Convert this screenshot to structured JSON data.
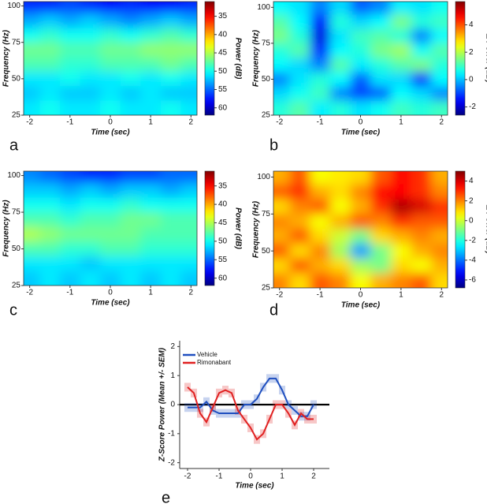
{
  "chart_data": [
    {
      "type": "heatmap",
      "panel_label": "a",
      "x_label": "Time (sec)",
      "y_label": "Frequency (Hz)",
      "colorbar_label": "Power (dB)",
      "x": [
        -2,
        -1.5,
        -1,
        -0.5,
        0,
        0.5,
        1,
        1.5,
        2
      ],
      "y": [
        100,
        90,
        80,
        70,
        60,
        50,
        40,
        30
      ],
      "z": [
        [
          57,
          57,
          56,
          57,
          58,
          57,
          58,
          58,
          57
        ],
        [
          53,
          52,
          53,
          52,
          53,
          54,
          53,
          52,
          53
        ],
        [
          50,
          49,
          50,
          50,
          49,
          50,
          49,
          48,
          49
        ],
        [
          47,
          47,
          48,
          48,
          47,
          47,
          46,
          46,
          46
        ],
        [
          48,
          48,
          49,
          49,
          48,
          48,
          48,
          47,
          48
        ],
        [
          51,
          51,
          50,
          51,
          51,
          50,
          51,
          50,
          51
        ],
        [
          52,
          51,
          52,
          52,
          51,
          52,
          51,
          52,
          52
        ],
        [
          51,
          50,
          51,
          51,
          50,
          51,
          51,
          50,
          51
        ]
      ],
      "xlim": [
        -2.15,
        2.15
      ],
      "ylim": [
        25,
        103
      ],
      "xticks": [
        -2,
        -1,
        0,
        1,
        2
      ],
      "yticks": [
        25,
        50,
        75,
        100
      ],
      "clim": [
        62,
        31
      ],
      "cticks": [
        35,
        40,
        45,
        50,
        55,
        60
      ],
      "colormap": "jet"
    },
    {
      "type": "heatmap",
      "panel_label": "b",
      "x_label": "Time (sec)",
      "y_label": "Frequency (Hz)",
      "colorbar_label": "Δ Power (dB)",
      "x": [
        -2,
        -1.5,
        -1,
        -0.5,
        0,
        0.5,
        1,
        1.5,
        2
      ],
      "y": [
        100,
        90,
        80,
        70,
        60,
        50,
        40,
        30
      ],
      "z": [
        [
          0.5,
          0.3,
          -0.5,
          0.2,
          -0.8,
          -0.5,
          0.4,
          0.3,
          0.6
        ],
        [
          1.2,
          0.5,
          -1.5,
          0.8,
          0.2,
          0.5,
          1.5,
          0.8,
          1.0
        ],
        [
          1.5,
          0.8,
          -1.8,
          0.3,
          1.0,
          1.2,
          0.8,
          -0.5,
          0.5
        ],
        [
          0.8,
          1.2,
          -1.2,
          0.5,
          0.8,
          1.5,
          1.8,
          0.6,
          1.2
        ],
        [
          0.5,
          0.2,
          -0.5,
          1.2,
          0.4,
          0.8,
          1.2,
          1.5,
          0.8
        ],
        [
          -0.5,
          0.3,
          0.8,
          0.5,
          -0.8,
          0.3,
          0.2,
          -1.2,
          0.5
        ],
        [
          0.2,
          0.6,
          1.0,
          -0.5,
          -1.0,
          -0.8,
          0.5,
          0.2,
          -0.5
        ],
        [
          0.8,
          1.2,
          0.4,
          0.8,
          0.3,
          0.6,
          1.0,
          0.8,
          1.0
        ]
      ],
      "xlim": [
        -2.15,
        2.15
      ],
      "ylim": [
        25,
        104
      ],
      "xticks": [
        -2,
        -1,
        0,
        1,
        2
      ],
      "yticks": [
        25,
        50,
        75,
        100
      ],
      "clim": [
        -2.6,
        5.7
      ],
      "cticks": [
        -2,
        0,
        2,
        4
      ],
      "colormap": "jet"
    },
    {
      "type": "heatmap",
      "panel_label": "c",
      "x_label": "Time (sec)",
      "y_label": "Frequency (Hz)",
      "colorbar_label": "Power (dB)",
      "x": [
        -2,
        -1.5,
        -1,
        -0.5,
        0,
        0.5,
        1,
        1.5,
        2
      ],
      "y": [
        100,
        90,
        80,
        70,
        60,
        50,
        40,
        30
      ],
      "z": [
        [
          54,
          55,
          56,
          57,
          57,
          56,
          56,
          55,
          55
        ],
        [
          52,
          52,
          53,
          52,
          53,
          52,
          52,
          53,
          52
        ],
        [
          50,
          50,
          51,
          50,
          50,
          49,
          50,
          50,
          50
        ],
        [
          48,
          48,
          49,
          48,
          48,
          47,
          47,
          48,
          48
        ],
        [
          45,
          46,
          47,
          47,
          47,
          47,
          48,
          48,
          48
        ],
        [
          48,
          48,
          49,
          49,
          48,
          48,
          49,
          49,
          49
        ],
        [
          51,
          51,
          51,
          52,
          51,
          51,
          51,
          51,
          51
        ],
        [
          52,
          51,
          52,
          51,
          52,
          51,
          52,
          51,
          52
        ]
      ],
      "xlim": [
        -2.15,
        2.15
      ],
      "ylim": [
        25,
        103
      ],
      "xticks": [
        -2,
        -1,
        0,
        1,
        2
      ],
      "yticks": [
        25,
        50,
        75,
        100
      ],
      "clim": [
        62,
        31
      ],
      "cticks": [
        35,
        40,
        45,
        50,
        55,
        60
      ],
      "colormap": "jet"
    },
    {
      "type": "heatmap",
      "panel_label": "d",
      "x_label": "Time (sec)",
      "y_label": "Frequency (Hz)",
      "colorbar_label": "Δ Power (dB)",
      "x": [
        -2,
        -1.5,
        -1,
        -0.5,
        0,
        0.5,
        1,
        1.5,
        2
      ],
      "y": [
        100,
        90,
        80,
        70,
        60,
        50,
        40,
        30
      ],
      "z": [
        [
          1.5,
          2.5,
          0.5,
          0.8,
          1.0,
          2.5,
          3.5,
          3.0,
          1.5
        ],
        [
          2.5,
          3.0,
          1.5,
          1.0,
          2.0,
          3.5,
          3.5,
          3.0,
          2.0
        ],
        [
          1.0,
          2.0,
          2.5,
          0.5,
          1.5,
          3.0,
          4.5,
          4.0,
          3.0
        ],
        [
          2.0,
          1.5,
          0.5,
          1.5,
          2.5,
          2.0,
          3.0,
          2.5,
          2.5
        ],
        [
          1.5,
          2.5,
          1.0,
          0.0,
          -1.0,
          1.0,
          1.5,
          2.0,
          1.5
        ],
        [
          2.5,
          1.0,
          2.0,
          -0.5,
          -3.5,
          -1.0,
          0.5,
          1.5,
          2.0
        ],
        [
          1.0,
          2.5,
          1.5,
          1.0,
          -0.5,
          -1.0,
          1.0,
          0.5,
          1.5
        ],
        [
          2.0,
          1.0,
          2.5,
          2.0,
          0.5,
          1.5,
          2.0,
          2.5,
          1.0
        ]
      ],
      "xlim": [
        -2.15,
        2.15
      ],
      "ylim": [
        25,
        104
      ],
      "xticks": [
        -2,
        -1,
        0,
        1,
        2
      ],
      "yticks": [
        25,
        50,
        75,
        100
      ],
      "clim": [
        -6.8,
        5
      ],
      "cticks": [
        -6,
        -4,
        -2,
        0,
        2,
        4
      ],
      "colormap": "jet"
    },
    {
      "type": "line",
      "panel_label": "e",
      "x_label": "Time (sec)",
      "y_label": "Z-Score Power (Mean +/- SEM)",
      "x": [
        -2,
        -1.8,
        -1.6,
        -1.4,
        -1.2,
        -1,
        -0.8,
        -0.6,
        -0.4,
        -0.2,
        0,
        0.2,
        0.4,
        0.6,
        0.8,
        1,
        1.2,
        1.4,
        1.6,
        1.8,
        2
      ],
      "series": [
        {
          "name": "Vehicle",
          "color": "#1f4fbf",
          "values": [
            -0.1,
            -0.1,
            -0.1,
            0.1,
            -0.2,
            -0.3,
            -0.3,
            -0.3,
            -0.3,
            0,
            0,
            0.2,
            0.6,
            0.9,
            0.9,
            0.5,
            0,
            -0.2,
            -0.4,
            -0.4,
            0
          ],
          "sem": [
            0.15,
            0.15,
            0.15,
            0.15,
            0.15,
            0.15,
            0.15,
            0.15,
            0.15,
            0.15,
            0.15,
            0.15,
            0.15,
            0.15,
            0.15,
            0.15,
            0.15,
            0.15,
            0.15,
            0.15,
            0.15
          ]
        },
        {
          "name": "Rimonabant",
          "color": "#e02020",
          "values": [
            0.6,
            0.4,
            -0.3,
            -0.6,
            -0.1,
            0.4,
            0.5,
            0.4,
            -0.2,
            -0.5,
            -0.8,
            -1.2,
            -1.0,
            -0.5,
            0,
            0,
            -0.3,
            -0.7,
            -0.3,
            -0.5,
            -0.5
          ],
          "sem": [
            0.15,
            0.15,
            0.15,
            0.15,
            0.15,
            0.15,
            0.15,
            0.15,
            0.15,
            0.15,
            0.15,
            0.15,
            0.15,
            0.15,
            0.15,
            0.15,
            0.15,
            0.15,
            0.15,
            0.15,
            0.15
          ]
        }
      ],
      "xlim": [
        -2.25,
        2.5
      ],
      "ylim": [
        -2.2,
        2.2
      ],
      "xticks": [
        -2,
        -1,
        0,
        1,
        2
      ],
      "yticks": [
        -2,
        -1,
        0,
        1,
        2
      ],
      "reference_line": 0,
      "legend": "upper left"
    }
  ]
}
